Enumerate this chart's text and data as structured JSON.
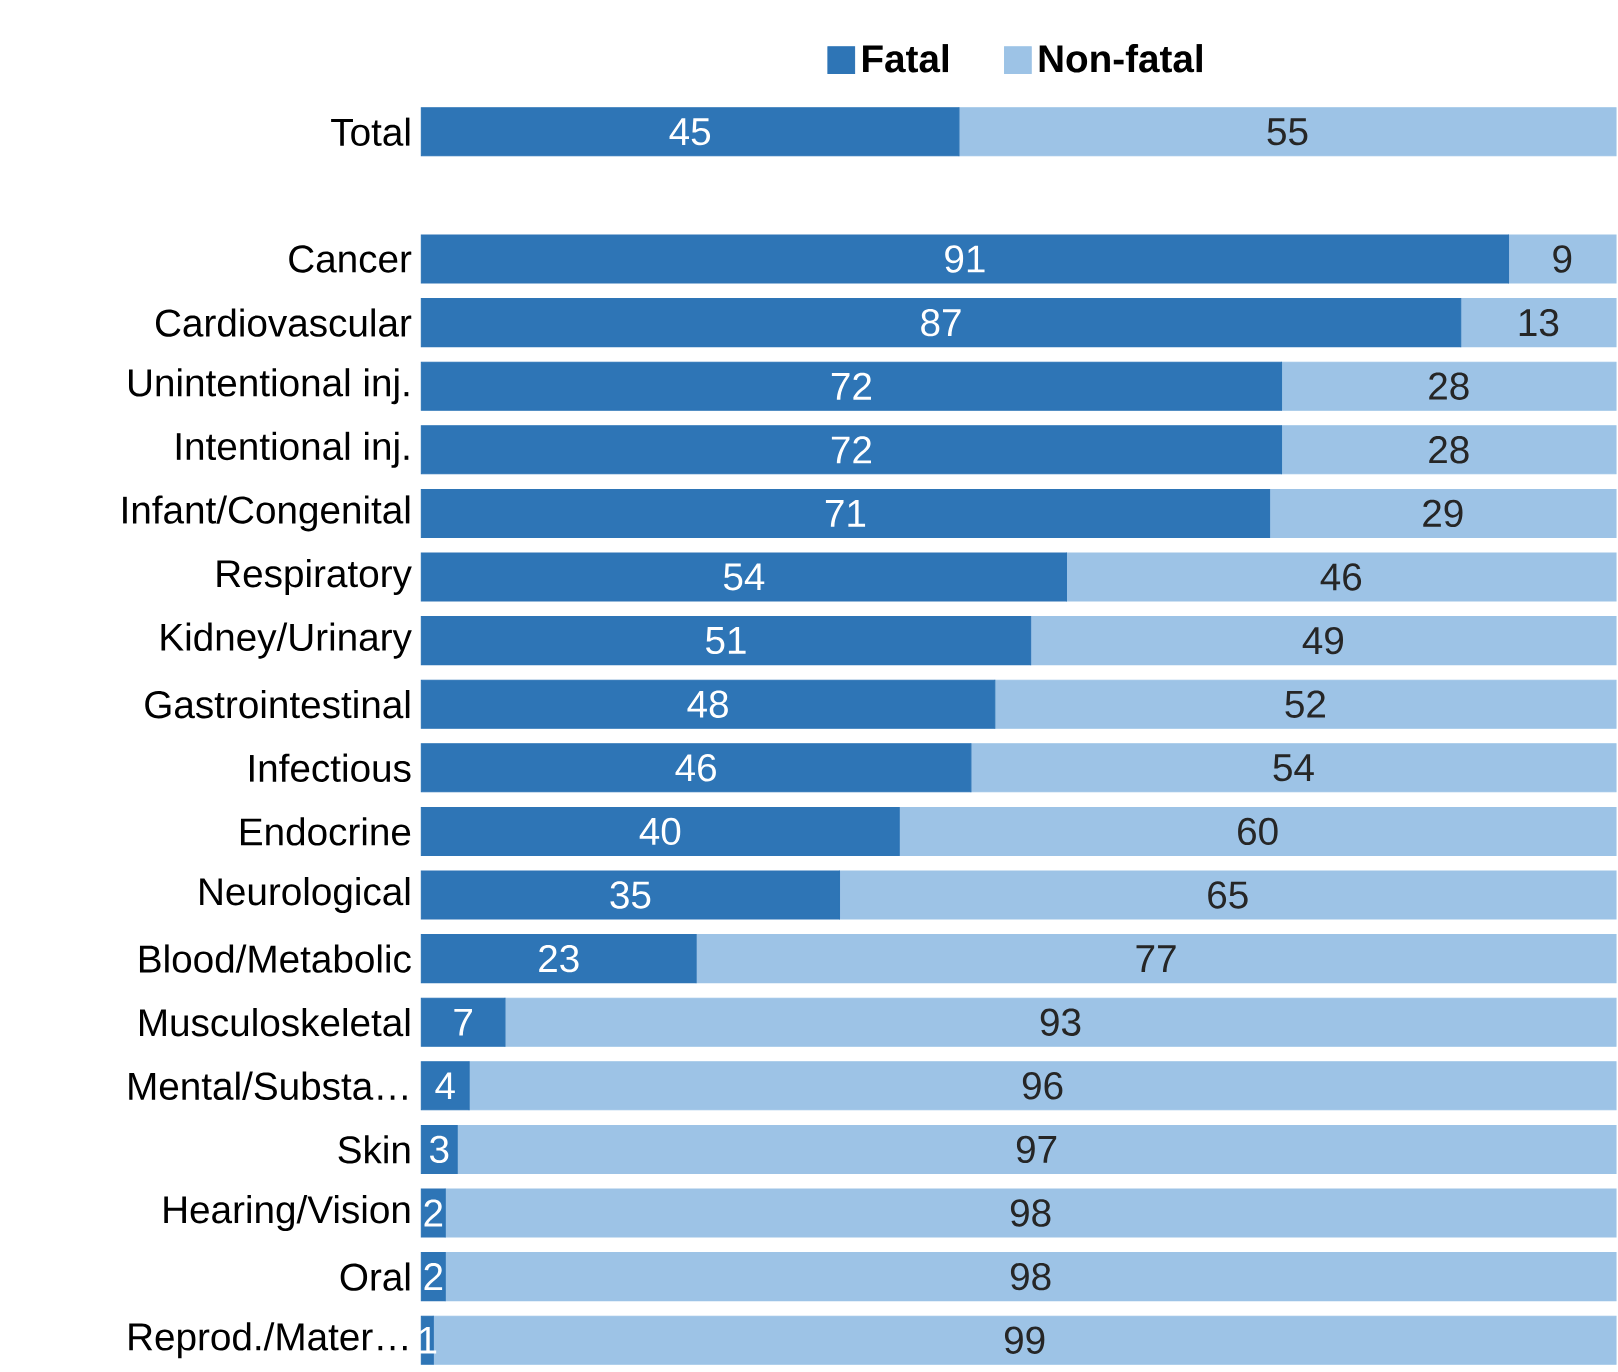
{
  "chart_data": {
    "type": "bar",
    "orientation": "horizontal",
    "stacked": true,
    "data_labels": true,
    "legend": "top",
    "tick_labels": "y",
    "categories": [
      "Total",
      null,
      "Cancer",
      "Cardiovascular",
      "Unintentional inj.",
      "Intentional inj.",
      "Infant/Congenital",
      "Respiratory",
      "Kidney/Urinary",
      "Gastrointestinal",
      "Infectious",
      "Endocrine",
      "Neurological",
      "Blood/Metabolic",
      "Musculoskeletal",
      "Mental/Substa…",
      "Skin",
      "Hearing/Vision",
      "Oral",
      "Reprod./Mater…"
    ],
    "series": [
      {
        "name": "Fatal",
        "color": "#2e75b6",
        "values": [
          45,
          null,
          91,
          87,
          72,
          72,
          71,
          54,
          51,
          48,
          46,
          40,
          35,
          23,
          7,
          4,
          3,
          2,
          2,
          1
        ]
      },
      {
        "name": "Non-fatal",
        "color": "#9dc3e6",
        "values": [
          55,
          null,
          9,
          13,
          28,
          28,
          29,
          46,
          49,
          52,
          54,
          60,
          65,
          77,
          93,
          96,
          97,
          98,
          98,
          99
        ]
      }
    ]
  }
}
